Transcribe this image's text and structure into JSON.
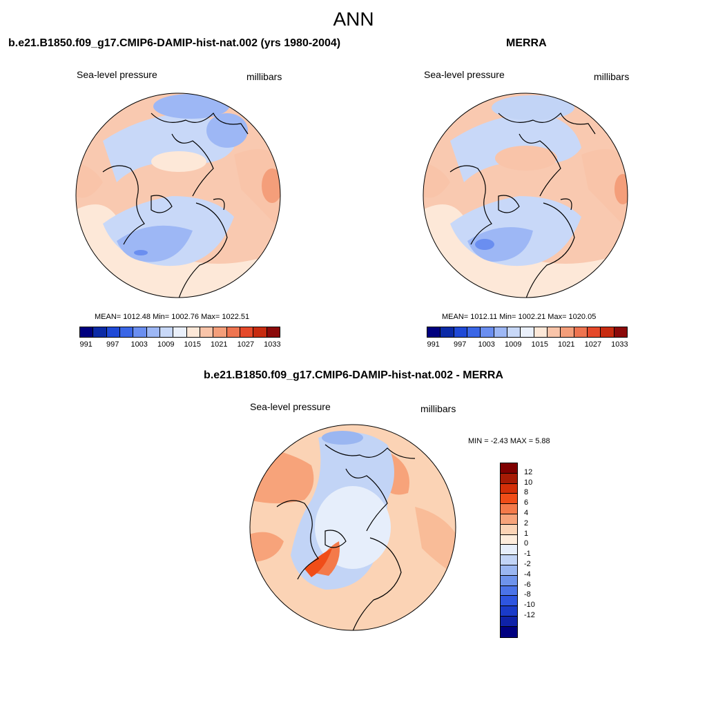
{
  "figure": {
    "title": "ANN"
  },
  "panels": {
    "model": {
      "title": "b.e21.B1850.f09_g17.CMIP6-DAMIP-hist-nat.002 (yrs 1980-2004)",
      "variable": "Sea-level pressure",
      "units": "millibars",
      "stats": "MEAN= 1012.48  Min= 1002.76  Max= 1022.51"
    },
    "obs": {
      "title": "MERRA",
      "variable": "Sea-level pressure",
      "units": "millibars",
      "stats": "MEAN= 1012.11  Min= 1002.21  Max= 1020.05"
    },
    "diff": {
      "title": "b.e21.B1850.f09_g17.CMIP6-DAMIP-hist-nat.002 - MERRA",
      "variable": "Sea-level pressure",
      "units": "millibars",
      "stats": "MIN =  -2.43 MAX =   5.88"
    }
  },
  "colorbars": {
    "abs_colors": [
      "#00007f",
      "#0b2aa6",
      "#1f49d6",
      "#3a66e6",
      "#6a8ef0",
      "#9db7f5",
      "#c8d8f8",
      "#eaf0fb",
      "#fde8d8",
      "#f9c4a9",
      "#f49e7a",
      "#ee7450",
      "#e5492a",
      "#c72b10",
      "#8b0a0a"
    ],
    "abs_ticks": [
      "991",
      "997",
      "1003",
      "1009",
      "1015",
      "1021",
      "1027",
      "1033"
    ],
    "diff_colors": [
      "#7f0000",
      "#a61b05",
      "#d32f08",
      "#f04d18",
      "#f47a4a",
      "#f7a37a",
      "#fbd3b5",
      "#fdecdc",
      "#e6eefb",
      "#c2d4f6",
      "#9ab6f1",
      "#6e93ec",
      "#4b73e8",
      "#2e55e0",
      "#1a3bc9",
      "#0f22a8",
      "#000080"
    ],
    "diff_ticks": [
      "12",
      "10",
      "8",
      "6",
      "4",
      "2",
      "1",
      "0",
      "-1",
      "-2",
      "-4",
      "-6",
      "-8",
      "-10",
      "-12"
    ]
  }
}
